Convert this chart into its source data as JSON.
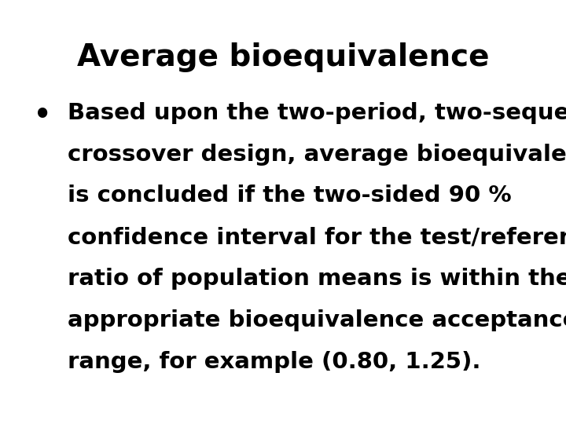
{
  "title": "Average bioequivalence",
  "title_fontsize": 28,
  "title_color": "#000000",
  "background_color": "#ffffff",
  "bullet_lines": [
    "Based upon the two-period, two-sequence",
    "crossover design, average bioequivalence",
    "is concluded if the two-sided 90 %",
    "confidence interval for the test/reference",
    "ratio of population means is within the",
    "appropriate bioequivalence acceptance",
    "range, for example (0.80, 1.25)."
  ],
  "bullet_fontsize": 21,
  "bullet_color": "#000000",
  "font_family": "DejaVu Sans",
  "font_weight": "bold"
}
